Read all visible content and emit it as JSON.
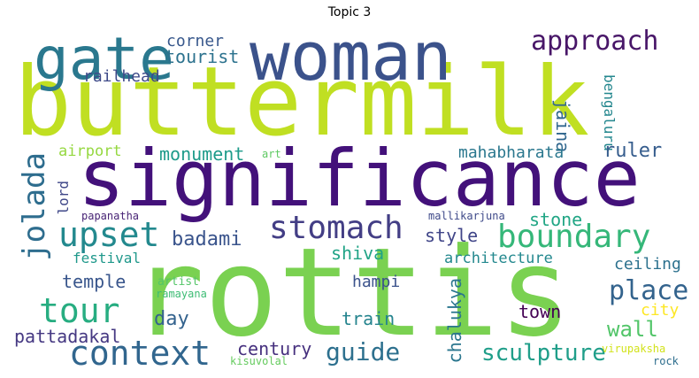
{
  "title": "Topic 3",
  "words": [
    {
      "text": "buttermilk",
      "color": "#c0df22"
    },
    {
      "text": "significance",
      "color": "#43117a"
    },
    {
      "text": "rottis",
      "color": "#7ad151"
    },
    {
      "text": "woman",
      "color": "#3b528b"
    },
    {
      "text": "gate",
      "color": "#2a788e"
    },
    {
      "text": "approach",
      "color": "#481668"
    },
    {
      "text": "boundary",
      "color": "#35b779"
    },
    {
      "text": "stomach",
      "color": "#433e85"
    },
    {
      "text": "upset",
      "color": "#23898e"
    },
    {
      "text": "jolada",
      "color": "#2e6d8e"
    },
    {
      "text": "tour",
      "color": "#27ad81"
    },
    {
      "text": "context",
      "color": "#31668e"
    },
    {
      "text": "corner",
      "color": "#38588c"
    },
    {
      "text": "tourist",
      "color": "#2c728e"
    },
    {
      "text": "railhead",
      "color": "#3e4a89"
    },
    {
      "text": "jaina",
      "color": "#31678e"
    },
    {
      "text": "bengaluru",
      "color": "#24878e"
    },
    {
      "text": "airport",
      "color": "#95d840"
    },
    {
      "text": "art",
      "color": "#5ec962"
    },
    {
      "text": "monument",
      "color": "#1e9b8a"
    },
    {
      "text": "mahabharata",
      "color": "#2a778e"
    },
    {
      "text": "ruler",
      "color": "#365d8d"
    },
    {
      "text": "lord",
      "color": "#3f4788"
    },
    {
      "text": "badami",
      "color": "#3a548c"
    },
    {
      "text": "papanatha",
      "color": "#482475"
    },
    {
      "text": "mallikarjuna",
      "color": "#3e4989"
    },
    {
      "text": "stone",
      "color": "#21a685"
    },
    {
      "text": "style",
      "color": "#404588"
    },
    {
      "text": "festival",
      "color": "#1f988b"
    },
    {
      "text": "shiva",
      "color": "#20a386"
    },
    {
      "text": "architecture",
      "color": "#23888e"
    },
    {
      "text": "ceiling",
      "color": "#2c718e"
    },
    {
      "text": "temple",
      "color": "#39568c"
    },
    {
      "text": "artist",
      "color": "#54c568"
    },
    {
      "text": "ramayana",
      "color": "#3dbc74"
    },
    {
      "text": "hampi",
      "color": "#3b528b"
    },
    {
      "text": "place",
      "color": "#33638d"
    },
    {
      "text": "chalukya",
      "color": "#2a768e"
    },
    {
      "text": "town",
      "color": "#440154"
    },
    {
      "text": "city",
      "color": "#fde725"
    },
    {
      "text": "day",
      "color": "#33628d"
    },
    {
      "text": "train",
      "color": "#25848e"
    },
    {
      "text": "wall",
      "color": "#52c569"
    },
    {
      "text": "pattadakal",
      "color": "#453882"
    },
    {
      "text": "century",
      "color": "#46307e"
    },
    {
      "text": "guide",
      "color": "#2d708e"
    },
    {
      "text": "sculpture",
      "color": "#1f9e89"
    },
    {
      "text": "virupaksha",
      "color": "#d2e21b"
    },
    {
      "text": "kisuvolal",
      "color": "#65cb5e"
    },
    {
      "text": "rock",
      "color": "#2e6e8e"
    }
  ]
}
